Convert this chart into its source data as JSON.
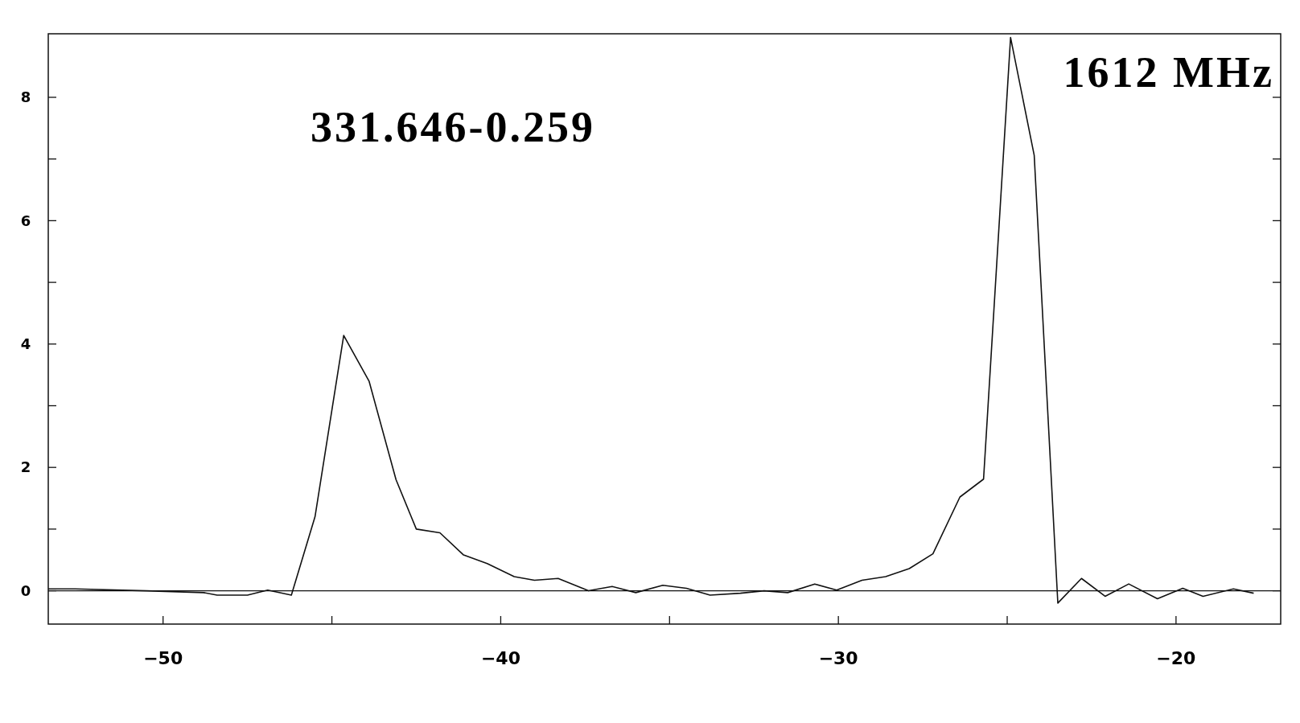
{
  "chart_data": {
    "type": "line",
    "x": [
      -53.4,
      -52.6,
      -50.5,
      -48.8,
      -48.4,
      -47.5,
      -46.9,
      -46.2,
      -45.5,
      -44.65,
      -43.9,
      -43.1,
      -42.5,
      -41.8,
      -41.1,
      -40.4,
      -39.6,
      -39.0,
      -38.3,
      -37.4,
      -36.7,
      -36.0,
      -35.2,
      -34.5,
      -33.8,
      -32.9,
      -32.2,
      -31.5,
      -30.7,
      -30.05,
      -29.3,
      -28.6,
      -27.9,
      -27.2,
      -26.4,
      -25.7,
      -24.9,
      -24.2,
      -23.5,
      -22.8,
      -22.1,
      -21.4,
      -20.55,
      -19.8,
      -19.2,
      -18.3,
      -17.7
    ],
    "series": [
      {
        "color": "#111111",
        "values": [
          0.03,
          0.03,
          0,
          -0.03,
          -0.07,
          -0.07,
          0.01,
          -0.07,
          1.2,
          4.14,
          3.4,
          1.8,
          1.0,
          0.94,
          0.58,
          0.44,
          0.23,
          0.17,
          0.2,
          0,
          0.07,
          -0.03,
          0.09,
          0.04,
          -0.07,
          -0.04,
          0,
          -0.03,
          0.11,
          0.01,
          0.17,
          0.23,
          0.36,
          0.6,
          1.52,
          1.81,
          8.97,
          7.06,
          -0.2,
          0.2,
          -0.09,
          0.11,
          -0.13,
          0.04,
          -0.09,
          0.03,
          -0.04
        ]
      }
    ],
    "xlim": [
      -53.4,
      -16.9
    ],
    "xticks": [
      -50,
      {
        "value": -45,
        "label": null
      },
      -40,
      {
        "value": -35,
        "label": null
      },
      -30,
      {
        "value": -25,
        "label": null
      },
      -20
    ],
    "ylim": [
      -0.54,
      9.03
    ],
    "yticks": [
      0,
      {
        "value": 1,
        "label": null
      },
      2,
      {
        "value": 3,
        "label": null
      },
      4,
      {
        "value": 5,
        "label": null
      },
      6,
      {
        "value": 7,
        "label": null
      },
      8
    ],
    "ref_lines": [
      {
        "axis": "y",
        "value": 0
      }
    ],
    "annotations": [
      "331.646-0.259",
      "1612 MHz"
    ],
    "grid": false,
    "marker": "none",
    "line_style": "solid"
  }
}
